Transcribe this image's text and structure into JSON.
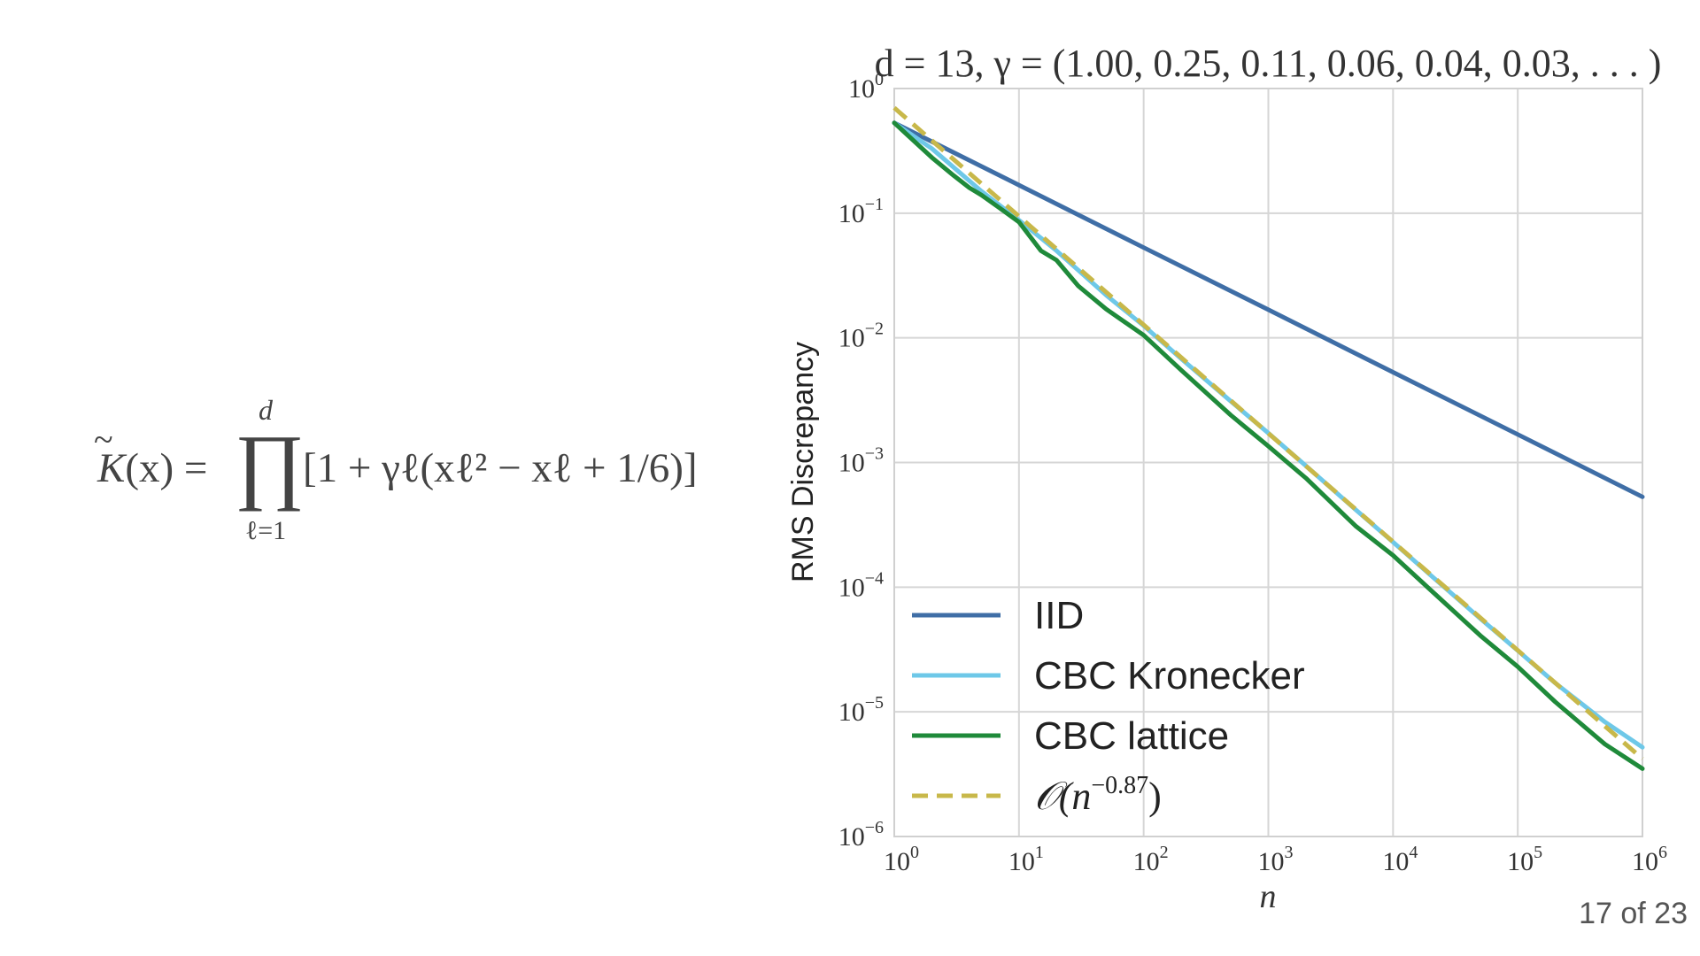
{
  "formula": {
    "lhs_symbol": "K",
    "lhs_tilde": "~",
    "lhs_arg": "(x) =",
    "product_symbol": "∏",
    "product_upper": "d",
    "product_lower": "ℓ=1",
    "rhs": "[1 + γℓ(xℓ² − xℓ + 1/6)]"
  },
  "page_number": "17 of 23",
  "colors": {
    "IID": "#3f6ea6",
    "CBC Kronecker": "#6ec8e8",
    "CBC lattice": "#1f8a3a",
    "O(n^-0.87)": "#c8b84a",
    "grid": "#d6d6d6"
  },
  "chart_data": {
    "type": "line",
    "title": "d = 13, γ = (1.00, 0.25, 0.11, 0.06, 0.04, 0.03, . . . )",
    "xlabel": "n",
    "ylabel": "RMS Discrepancy",
    "xscale": "log",
    "yscale": "log",
    "xlim": [
      1,
      1000000
    ],
    "ylim": [
      1e-06,
      1
    ],
    "grid": true,
    "legend_position": "lower-left",
    "x_ticks": [
      "10^0",
      "10^1",
      "10^2",
      "10^3",
      "10^4",
      "10^5",
      "10^6"
    ],
    "y_ticks": [
      "10^0",
      "10^-1",
      "10^-2",
      "10^-3",
      "10^-4",
      "10^-5",
      "10^-6"
    ],
    "series": [
      {
        "name": "IID",
        "style": "solid",
        "x": [
          1,
          10,
          100,
          1000,
          10000,
          100000,
          1000000
        ],
        "y": [
          0.53,
          0.168,
          0.053,
          0.0168,
          0.0053,
          0.00168,
          0.00053
        ]
      },
      {
        "name": "CBC Kronecker",
        "style": "solid",
        "x": [
          1,
          2,
          5,
          10,
          20,
          50,
          100,
          200,
          500,
          1000,
          2000,
          5000,
          10000,
          20000,
          50000,
          100000,
          200000,
          500000,
          1000000
        ],
        "y": [
          0.53,
          0.33,
          0.15,
          0.088,
          0.05,
          0.022,
          0.0125,
          0.0068,
          0.0031,
          0.00172,
          0.00094,
          0.00042,
          0.00023,
          0.000125,
          5.6e-05,
          3.1e-05,
          1.7e-05,
          8.3e-06,
          5.2e-06
        ]
      },
      {
        "name": "CBC lattice",
        "style": "solid",
        "x": [
          1,
          2,
          3,
          4,
          5,
          7,
          10,
          15,
          20,
          30,
          50,
          100,
          200,
          500,
          1000,
          2000,
          5000,
          10000,
          20000,
          50000,
          100000,
          200000,
          500000,
          1000000
        ],
        "y": [
          0.53,
          0.28,
          0.2,
          0.16,
          0.14,
          0.11,
          0.085,
          0.05,
          0.042,
          0.026,
          0.017,
          0.0105,
          0.0055,
          0.0024,
          0.00135,
          0.00075,
          0.00031,
          0.00018,
          9.5e-05,
          4.1e-05,
          2.3e-05,
          1.2e-05,
          5.5e-06,
          3.5e-06
        ]
      },
      {
        "name": "O(n^-0.87)",
        "legend_label": "𝒪(n^−0.87)",
        "style": "dashed",
        "x": [
          1,
          1000000
        ],
        "y": [
          0.7,
          4.2e-06
        ]
      }
    ]
  }
}
